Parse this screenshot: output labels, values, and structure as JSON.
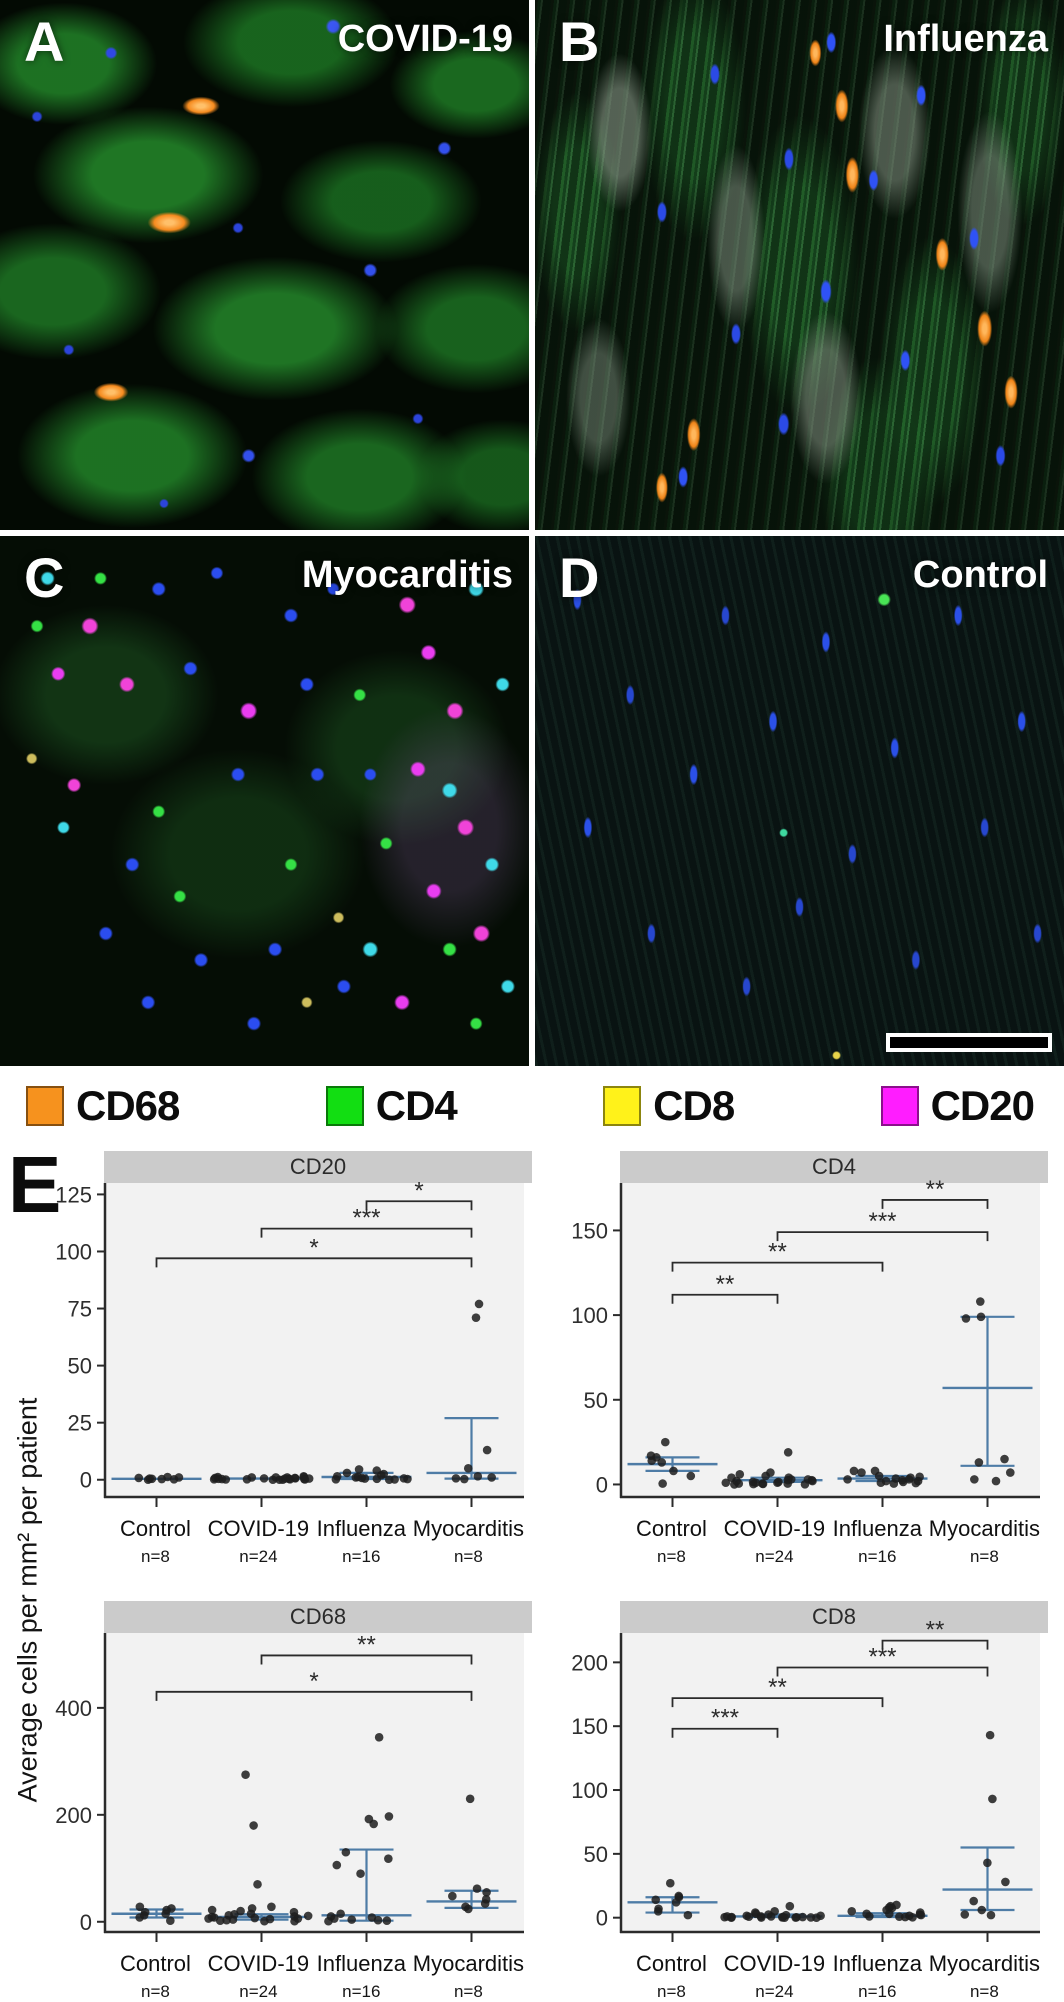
{
  "figure": {
    "micro_panels": [
      {
        "letter": "A",
        "condition": "COVID-19"
      },
      {
        "letter": "B",
        "condition": "Influenza"
      },
      {
        "letter": "C",
        "condition": "Myocarditis"
      },
      {
        "letter": "D",
        "condition": "Control"
      }
    ],
    "plot_panel_letter": "E"
  },
  "legend": {
    "items": [
      {
        "label": "CD68",
        "color": "#F6921E"
      },
      {
        "label": "CD4",
        "color": "#12DE12"
      },
      {
        "label": "CD8",
        "color": "#FFF21A"
      },
      {
        "label": "CD20",
        "color": "#FF1DFF"
      }
    ]
  },
  "chart_data": {
    "type": "scatter",
    "shared": {
      "ylabel": "Average cells per mm² per patient",
      "categories": [
        {
          "label": "Control",
          "n": "n=8"
        },
        {
          "label": "COVID-19",
          "n": "n=24"
        },
        {
          "label": "Influenza",
          "n": "n=16"
        },
        {
          "label": "Myocarditis",
          "n": "n=8"
        }
      ],
      "point_color": "#1d1d1d",
      "summary_color": "#4e7ca6",
      "grid": false,
      "legend_position": "none"
    },
    "charts": [
      {
        "title": "CD20",
        "ylim": [
          -8,
          130
        ],
        "yticks": [
          0,
          25,
          50,
          75,
          100,
          125
        ],
        "groups": [
          {
            "points": [
              1.2,
              1,
              0.8,
              0.5,
              0.4,
              0.3,
              0.2,
              0
            ],
            "summary": {
              "center": 0.4,
              "lower": null,
              "upper": null
            }
          },
          {
            "points": [
              1.5,
              1.2,
              1.2,
              1,
              1,
              1,
              0.8,
              0.8,
              0.6,
              0.6,
              0.5,
              0.5,
              0.4,
              0.4,
              0.3,
              0.3,
              0.2,
              0.2,
              0.2,
              0.1,
              0.1,
              0,
              0,
              0
            ],
            "summary": {
              "center": 0.5,
              "lower": null,
              "upper": null
            }
          },
          {
            "points": [
              4.5,
              4,
              3,
              2.5,
              2,
              1.5,
              1.2,
              1,
              0.8,
              0.6,
              0.5,
              0.4,
              0.3,
              0.2,
              0.1,
              0
            ],
            "summary": {
              "center": 1.2,
              "lower": 0.3,
              "upper": 3
            }
          },
          {
            "points": [
              77,
              71,
              13,
              5,
              1.5,
              1,
              0.6,
              0.3
            ],
            "summary": {
              "center": 3,
              "lower": 0.5,
              "upper": 27
            }
          }
        ],
        "brackets": [
          {
            "from": 2,
            "to": 3,
            "label": "*",
            "y": 122
          },
          {
            "from": 1,
            "to": 3,
            "label": "***",
            "y": 110
          },
          {
            "from": 0,
            "to": 3,
            "label": "*",
            "y": 97
          }
        ]
      },
      {
        "title": "CD4",
        "ylim": [
          -8,
          178
        ],
        "yticks": [
          0,
          50,
          100,
          150
        ],
        "groups": [
          {
            "points": [
              25,
              17,
              16,
              14,
              13,
              8,
              5,
              0.5
            ],
            "summary": {
              "center": 12,
              "lower": 8,
              "upper": 16
            }
          },
          {
            "points": [
              19,
              7,
              6,
              5,
              4,
              4,
              3,
              3,
              2.5,
              2.5,
              2,
              2,
              1.5,
              1.5,
              1,
              1,
              1,
              0.5,
              0.5,
              0.5,
              0.3,
              0.2,
              0.1,
              0
            ],
            "summary": {
              "center": 2.5,
              "lower": 1.5,
              "upper": 4
            }
          },
          {
            "points": [
              8,
              8,
              7,
              5,
              4.5,
              4,
              3.5,
              3,
              3,
              2.5,
              2,
              2,
              1.5,
              1,
              0.8,
              0.5
            ],
            "summary": {
              "center": 3.5,
              "lower": 2,
              "upper": 5
            }
          },
          {
            "points": [
              108,
              99,
              98,
              15,
              13,
              7,
              3,
              2
            ],
            "summary": {
              "center": 57,
              "lower": 11,
              "upper": 99
            }
          }
        ],
        "brackets": [
          {
            "from": 2,
            "to": 3,
            "label": "**",
            "y": 168
          },
          {
            "from": 1,
            "to": 3,
            "label": "***",
            "y": 149
          },
          {
            "from": 0,
            "to": 2,
            "label": "**",
            "y": 131
          },
          {
            "from": 0,
            "to": 1,
            "label": "**",
            "y": 112
          }
        ]
      },
      {
        "title": "CD68",
        "ylim": [
          -21,
          540
        ],
        "yticks": [
          0,
          200,
          400
        ],
        "groups": [
          {
            "points": [
              28,
              25,
              22,
              18,
              15,
              12,
              8,
              2
            ],
            "summary": {
              "center": 15,
              "lower": 8,
              "upper": 23
            }
          },
          {
            "points": [
              275,
              180,
              70,
              28,
              25,
              22,
              20,
              18,
              15,
              14,
              12,
              11,
              10,
              9,
              8,
              7,
              6,
              6,
              5,
              4,
              3,
              2,
              1,
              1
            ],
            "summary": {
              "center": 9,
              "lower": 4,
              "upper": 14
            }
          },
          {
            "points": [
              345,
              197,
              192,
              183,
              130,
              118,
              106,
              90,
              15,
              10,
              8,
              6,
              4,
              3,
              2,
              1
            ],
            "summary": {
              "center": 12,
              "lower": 2,
              "upper": 135
            }
          },
          {
            "points": [
              230,
              62,
              55,
              48,
              42,
              34,
              28,
              24
            ],
            "summary": {
              "center": 38,
              "lower": 26,
              "upper": 58
            }
          }
        ],
        "brackets": [
          {
            "from": 1,
            "to": 3,
            "label": "**",
            "y": 498
          },
          {
            "from": 0,
            "to": 3,
            "label": "*",
            "y": 430
          }
        ]
      },
      {
        "title": "CD8",
        "ylim": [
          -12,
          223
        ],
        "yticks": [
          0,
          50,
          100,
          150,
          200
        ],
        "groups": [
          {
            "points": [
              27,
              17,
              16,
              14,
              12,
              7,
              5,
              2
            ],
            "summary": {
              "center": 12,
              "lower": 4,
              "upper": 16
            }
          },
          {
            "points": [
              9,
              5,
              4,
              3,
              2.5,
              2,
              1.5,
              1.5,
              1,
              1,
              1,
              0.8,
              0.6,
              0.5,
              0.5,
              0.4,
              0.3,
              0.2,
              0.2,
              0.1,
              0.1,
              0,
              0,
              0
            ],
            "summary": {
              "center": 1,
              "lower": 0.5,
              "upper": 2.5
            }
          },
          {
            "points": [
              10,
              9,
              8,
              7.5,
              6,
              5,
              4,
              3,
              3,
              2.5,
              2,
              1.5,
              1,
              0.8,
              0.5,
              0.3
            ],
            "summary": {
              "center": 1.5,
              "lower": 0.5,
              "upper": 3.5
            }
          },
          {
            "points": [
              143,
              93,
              43,
              28,
              13,
              6,
              2.5,
              2
            ],
            "summary": {
              "center": 22,
              "lower": 6,
              "upper": 55
            }
          }
        ],
        "brackets": [
          {
            "from": 2,
            "to": 3,
            "label": "**",
            "y": 217
          },
          {
            "from": 1,
            "to": 3,
            "label": "***",
            "y": 196
          },
          {
            "from": 0,
            "to": 2,
            "label": "**",
            "y": 172
          },
          {
            "from": 0,
            "to": 1,
            "label": "***",
            "y": 148
          }
        ]
      }
    ]
  }
}
